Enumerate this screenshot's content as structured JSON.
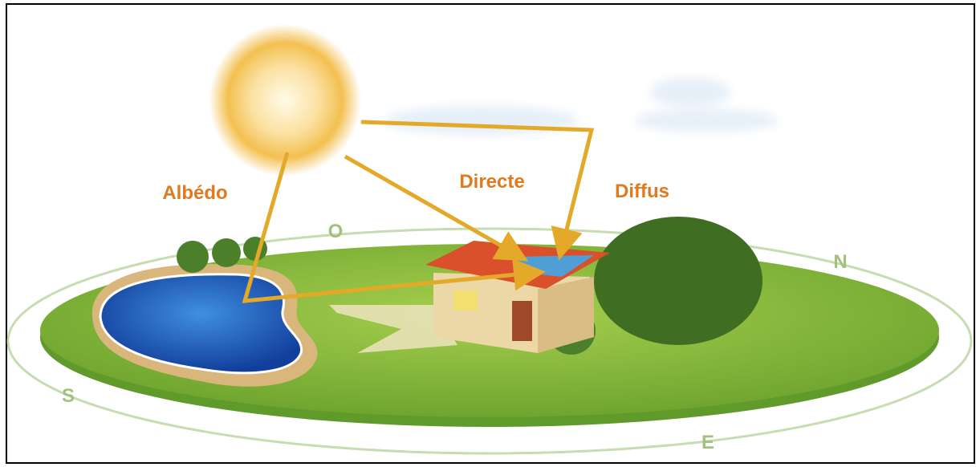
{
  "radiation_labels": [
    "Albédo",
    "Directe",
    "Diffus"
  ],
  "compass": [
    "O",
    "N",
    "S",
    "E"
  ]
}
